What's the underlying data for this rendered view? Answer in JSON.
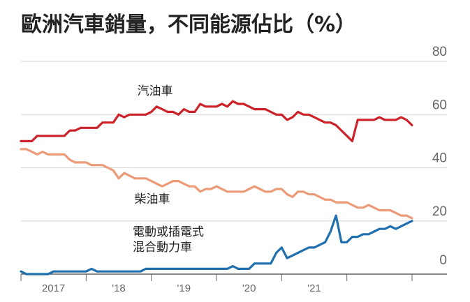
{
  "title": "歐洲汽車銷量，不同能源佔比（%）",
  "chart_data": {
    "type": "line",
    "title": "歐洲汽車銷量，不同能源佔比（%）",
    "xlabel": "",
    "ylabel": "",
    "ylim": [
      0,
      80
    ],
    "yticks": [
      "0",
      "20",
      "40",
      "60",
      "80"
    ],
    "xtick_labels": [
      "2017",
      "'18",
      "'19",
      "'20",
      "'21"
    ],
    "grid": "horizontal",
    "x_monthly_from": "2017-01",
    "series": [
      {
        "name": "汽油車",
        "color": "#cc2229",
        "values": [
          50,
          50,
          50,
          52,
          52,
          52,
          52,
          52,
          52,
          54,
          54,
          55,
          55,
          55,
          55,
          57,
          57,
          57,
          60,
          59,
          60,
          60,
          60,
          60,
          61,
          63,
          62,
          61,
          61,
          60,
          62,
          61,
          61,
          64,
          63,
          63,
          63,
          64,
          63,
          65,
          64,
          64,
          63,
          62,
          62,
          62,
          61,
          60,
          60,
          58,
          59,
          61,
          60,
          60,
          59,
          58,
          57,
          57,
          56,
          54,
          52,
          50,
          58,
          58,
          58,
          58,
          59,
          58,
          58,
          58,
          59,
          58,
          56
        ]
      },
      {
        "name": "柴油車",
        "color": "#ec9b78",
        "values": [
          47,
          47,
          46,
          45,
          46,
          45,
          45,
          45,
          45,
          43,
          42,
          42,
          42,
          41,
          41,
          41,
          40,
          39,
          36,
          38,
          37,
          36,
          36,
          36,
          35,
          34,
          33,
          34,
          35,
          35,
          34,
          33,
          33,
          31,
          32,
          32,
          33,
          32,
          31,
          31,
          31,
          31,
          32,
          33,
          32,
          31,
          31,
          32,
          32,
          30,
          29,
          31,
          31,
          30,
          30,
          29,
          28,
          28,
          27,
          27,
          27,
          26,
          25,
          25,
          26,
          25,
          24,
          24,
          24,
          23,
          22,
          22,
          21
        ]
      },
      {
        "name": "電動或插電式混合動力車",
        "color": "#1f6fae",
        "values": [
          1,
          0,
          0,
          0,
          0,
          0,
          1,
          1,
          1,
          1,
          1,
          1,
          1,
          2,
          1,
          1,
          1,
          1,
          1,
          1,
          1,
          1,
          1,
          2,
          2,
          2,
          2,
          2,
          2,
          2,
          2,
          2,
          2,
          2,
          2,
          2,
          2,
          2,
          2,
          3,
          2,
          2,
          2,
          4,
          4,
          4,
          4,
          8,
          10,
          6,
          7,
          8,
          9,
          10,
          10,
          11,
          12,
          16,
          22,
          12,
          12,
          14,
          14,
          15,
          15,
          16,
          17,
          17,
          18,
          17,
          18,
          19,
          20
        ]
      }
    ],
    "series_labels_printed": {
      "gasoline": "汽油車",
      "diesel": "柴油車",
      "ev_line1": "電動或插電式",
      "ev_line2": "混合動力車"
    }
  }
}
